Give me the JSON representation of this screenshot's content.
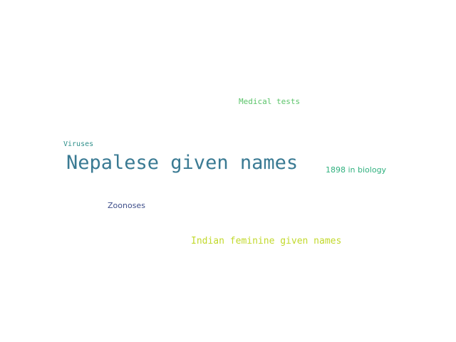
{
  "word_cloud": {
    "words": [
      {
        "text": "Medical tests",
        "color": "#5bc46a"
      },
      {
        "text": "Viruses",
        "color": "#2e8f8a"
      },
      {
        "text": "Nepalese given names",
        "color": "#3a7a93"
      },
      {
        "text": "1898 in biology",
        "color": "#2fb07e"
      },
      {
        "text": "Zoonoses",
        "color": "#3e4e8a"
      },
      {
        "text": "Indian feminine given names",
        "color": "#c2d92c"
      }
    ]
  }
}
